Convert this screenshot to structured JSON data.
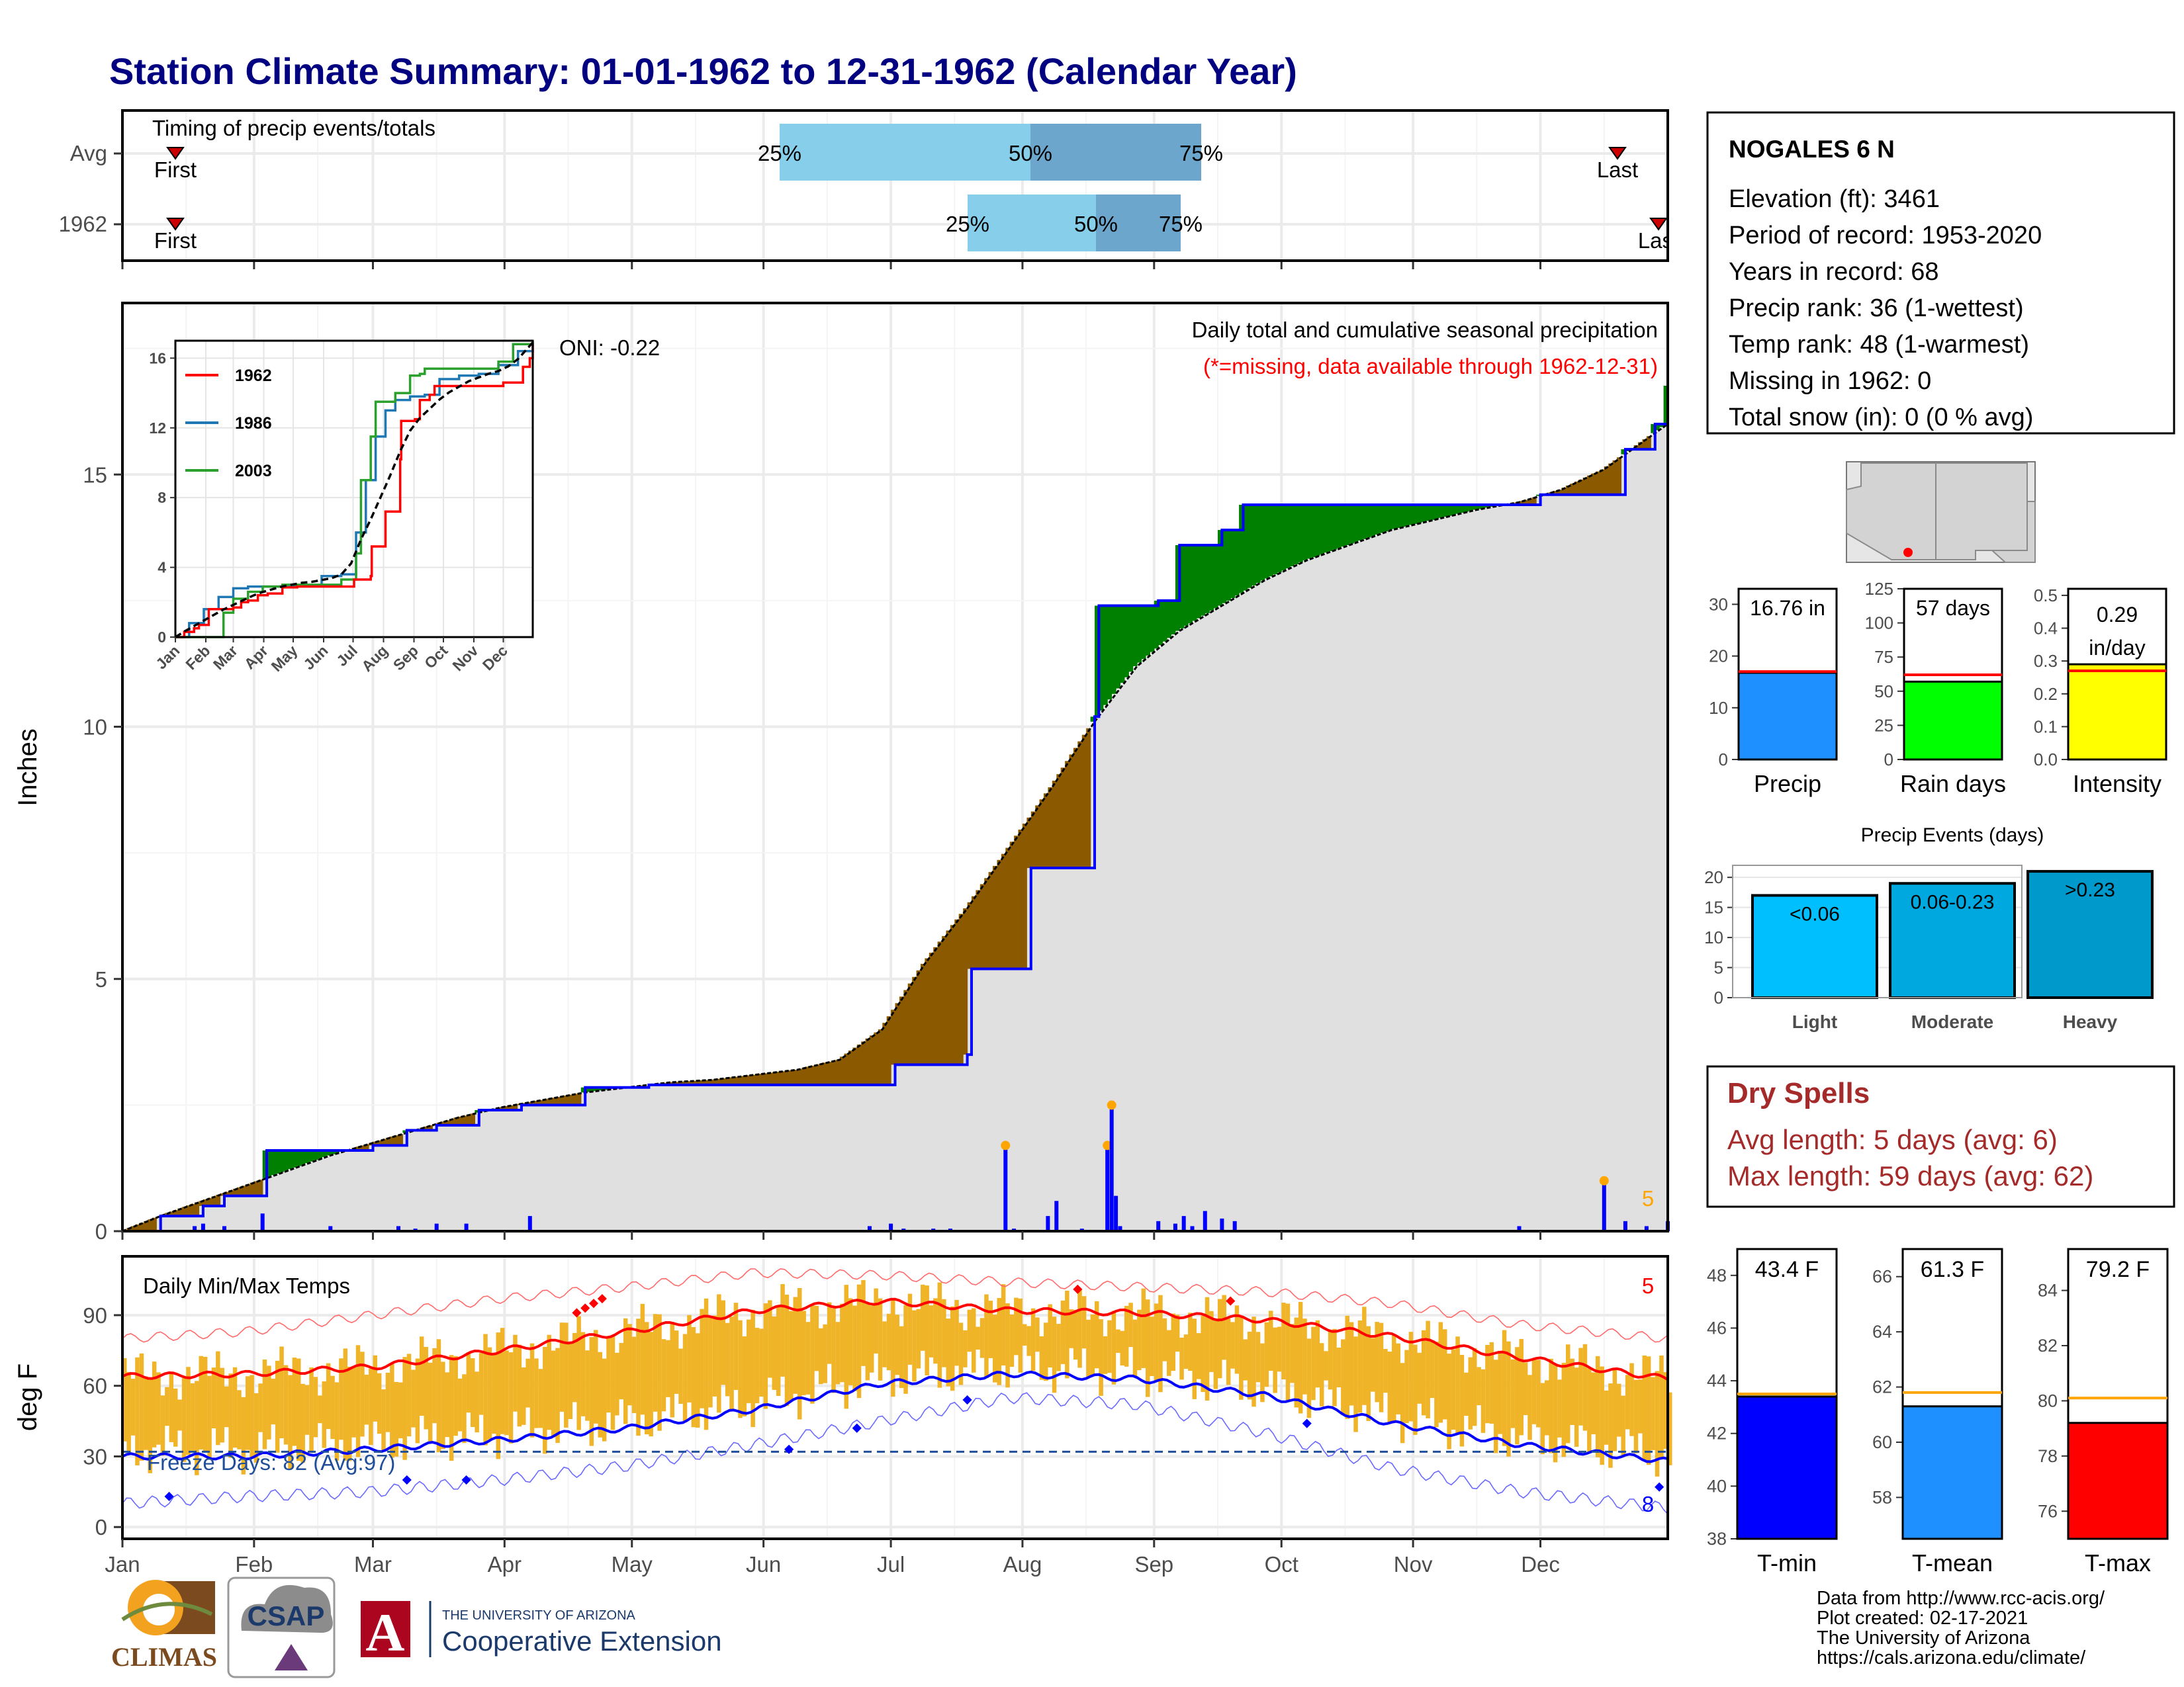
{
  "title": "Station Climate Summary: 01-01-1962 to 12-31-1962 (Calendar Year)",
  "colors": {
    "title": "#000080",
    "green": "#008000",
    "brown": "#8B5A00",
    "blue": "#0000FF",
    "grey_fill": "#E0E0E0",
    "light_blue": "#87CEEB",
    "mid_blue": "#6CA6CD",
    "orange": "#FFA500",
    "gold": "#F0B429",
    "red": "#FF0000",
    "dry_spell": "#A52A2A"
  },
  "timing_panel": {
    "title": "Timing of precip events/totals",
    "rows": [
      {
        "label": "Avg",
        "first_label": "First",
        "last_label": "Last",
        "p25_label": "25%",
        "p50_label": "50%",
        "p75_label": "75%"
      },
      {
        "label": "1962",
        "first_label": "First",
        "last_label": "Last",
        "p25_label": "25%",
        "p50_label": "50%",
        "p75_label": "75%"
      }
    ]
  },
  "precip_panel": {
    "ylabel": "Inches",
    "oni": "ONI: -0.22",
    "legend_title": "Daily total and cumulative seasonal precipitation",
    "missing_note": "(*=missing, data available through 1962-12-31)",
    "extreme_count": "5",
    "yticks": [
      "0",
      "5",
      "10",
      "15"
    ]
  },
  "inset": {
    "yticks": [
      "0",
      "4",
      "8",
      "12",
      "16"
    ],
    "months": [
      "Jan",
      "Feb",
      "Mar",
      "Apr",
      "May",
      "Jun",
      "Jul",
      "Aug",
      "Sep",
      "Oct",
      "Nov",
      "Dec"
    ],
    "legend": [
      {
        "name": "1962",
        "color": "#FF0000"
      },
      {
        "name": "1986",
        "color": "#1F77B4"
      },
      {
        "name": "2003",
        "color": "#2CA02C"
      }
    ]
  },
  "temp_panel": {
    "ylabel": "deg F",
    "title": "Daily Min/Max Temps",
    "freeze": "Freeze Days: 82 (Avg:97)",
    "max_extreme_count": "5",
    "min_extreme_count": "8",
    "yticks": [
      "0",
      "30",
      "60",
      "90"
    ],
    "months": [
      "Jan",
      "Feb",
      "Mar",
      "Apr",
      "May",
      "Jun",
      "Jul",
      "Aug",
      "Sep",
      "Oct",
      "Nov",
      "Dec"
    ]
  },
  "station_info": {
    "name": "NOGALES 6 N",
    "lines": [
      "Elevation (ft): 3461",
      "Period of record: 1953-2020",
      "Years in record: 68",
      "Precip rank: 36 (1-wettest)",
      "Temp rank: 48 (1-warmest)",
      "Missing in 1962: 0",
      "Total snow (in): 0 (0 % avg)"
    ]
  },
  "summary_bars": [
    {
      "name": "Precip",
      "value_label": "16.76 in",
      "value": 16.76,
      "avg": 17.0,
      "ymax": 33,
      "yticks": [
        "0",
        "10",
        "20",
        "30"
      ],
      "color": "#1E90FF"
    },
    {
      "name": "Rain days",
      "value_label": "57 days",
      "value": 57,
      "avg": 62,
      "ymax": 125,
      "yticks": [
        "0",
        "25",
        "50",
        "75",
        "100",
        "125"
      ],
      "color": "#00FF00"
    },
    {
      "name": "Intensity",
      "value_label": "0.29\nin/day",
      "value_line1": "0.29",
      "value_line2": "in/day",
      "value": 0.29,
      "avg": 0.27,
      "ymax": 0.52,
      "yticks": [
        "0.0",
        "0.1",
        "0.2",
        "0.3",
        "0.4",
        "0.5"
      ],
      "color": "#FFFF00"
    }
  ],
  "events_chart": {
    "title": "Precip Events (days)",
    "yticks": [
      "0",
      "5",
      "10",
      "15",
      "20"
    ],
    "bars": [
      {
        "category": "Light",
        "label": "<0.06",
        "value": 17,
        "color": "#00BFFF"
      },
      {
        "category": "Moderate",
        "label": "0.06-0.23",
        "value": 19,
        "color": "#00A8E0"
      },
      {
        "category": "Heavy",
        "label": ">0.23",
        "value": 21,
        "color": "#0099CC"
      }
    ]
  },
  "dry_spells": {
    "title": "Dry Spells",
    "avg": "Avg length: 5 days (avg: 6)",
    "max": "Max length: 59 days (avg: 62)"
  },
  "temp_bars": [
    {
      "name": "T-min",
      "value_label": "43.4 F",
      "value": 43.4,
      "avg": 43.5,
      "ymin": 38,
      "ymax": 49,
      "yticks": [
        "38",
        "40",
        "42",
        "44",
        "46",
        "48"
      ],
      "color": "#0000FF"
    },
    {
      "name": "T-mean",
      "value_label": "61.3 F",
      "value": 61.3,
      "avg": 61.8,
      "ymin": 56.5,
      "ymax": 67,
      "yticks": [
        "58",
        "60",
        "62",
        "64",
        "66"
      ],
      "color": "#1E90FF"
    },
    {
      "name": "T-max",
      "value_label": "79.2 F",
      "value": 79.2,
      "avg": 80.1,
      "ymin": 75,
      "ymax": 85.5,
      "yticks": [
        "76",
        "78",
        "80",
        "82",
        "84"
      ],
      "color": "#FF0000"
    }
  ],
  "footer": {
    "lines": [
      "Data from http://www.rcc-acis.org/",
      "Plot created: 02-17-2021",
      "The University of Arizona",
      "https://cals.arizona.edu/climate/"
    ],
    "climas": "CLIMAS",
    "csap": "CSAP",
    "ua_line1": "THE UNIVERSITY OF ARIZONA",
    "ua_line2": "Cooperative Extension"
  },
  "chart_data": [
    {
      "type": "area",
      "title": "Daily total and cumulative seasonal precipitation",
      "ylabel": "Inches",
      "ylim": [
        0,
        18.4
      ],
      "x_unit": "day of year 1962",
      "series": [
        {
          "name": "1962",
          "x": [
            1,
            10,
            20,
            25,
            35,
            50,
            60,
            68,
            75,
            85,
            95,
            110,
            125,
            140,
            160,
            170,
            178,
            183,
            190,
            200,
            201,
            215,
            215,
            228,
            230,
            231,
            245,
            250,
            260,
            265,
            270,
            290,
            330,
            335,
            350,
            355,
            362,
            365
          ],
          "values": [
            0,
            0.3,
            0.5,
            0.7,
            1.6,
            1.6,
            1.7,
            2.0,
            2.1,
            2.4,
            2.5,
            2.85,
            2.9,
            2.9,
            2.9,
            2.9,
            2.9,
            3.3,
            3.3,
            3.5,
            5.2,
            5.3,
            7.2,
            7.2,
            10.2,
            12.4,
            12.5,
            13.6,
            13.9,
            14.4,
            14.4,
            14.4,
            14.4,
            14.6,
            14.6,
            15.5,
            16.0,
            16.76
          ]
        },
        {
          "name": "Avg",
          "x": [
            1,
            10,
            20,
            30,
            40,
            50,
            60,
            70,
            80,
            90,
            100,
            110,
            120,
            130,
            140,
            150,
            160,
            170,
            180,
            190,
            200,
            210,
            220,
            230,
            240,
            250,
            260,
            270,
            280,
            290,
            300,
            310,
            320,
            330,
            340,
            350,
            365
          ],
          "values": [
            0,
            0.3,
            0.6,
            0.9,
            1.2,
            1.5,
            1.75,
            2.0,
            2.25,
            2.45,
            2.6,
            2.75,
            2.85,
            2.95,
            3.0,
            3.1,
            3.2,
            3.4,
            4.0,
            5.3,
            6.4,
            7.6,
            8.8,
            10.1,
            11.2,
            11.9,
            12.4,
            12.9,
            13.3,
            13.6,
            13.9,
            14.1,
            14.3,
            14.45,
            14.7,
            15.1,
            16.0
          ]
        }
      ],
      "daily_events": {
        "x": [
          18,
          20,
          25,
          34,
          50,
          66,
          70,
          75,
          82,
          97,
          177,
          182,
          185,
          192,
          196,
          209,
          211,
          219,
          221,
          227,
          233,
          234,
          235,
          236,
          245,
          249,
          251,
          253,
          256,
          260,
          263,
          330,
          350,
          355,
          360,
          365
        ],
        "values": [
          0.1,
          0.15,
          0.1,
          0.35,
          0.1,
          0.1,
          0.05,
          0.15,
          0.15,
          0.3,
          0.1,
          0.15,
          0.05,
          0.05,
          0.05,
          1.7,
          0.05,
          0.3,
          0.6,
          0.05,
          1.7,
          2.5,
          0.7,
          0.1,
          0.2,
          0.15,
          0.3,
          0.1,
          0.4,
          0.25,
          0.2,
          0.1,
          1.0,
          0.2,
          0.1,
          0.2
        ]
      }
    },
    {
      "type": "line",
      "title": "Daily Min/Max Temps",
      "ylabel": "deg F",
      "ylim": [
        -5,
        115
      ],
      "x_unit": "day of year 1962",
      "series": [
        {
          "name": "Avg max",
          "x": [
            1,
            30,
            60,
            90,
            120,
            150,
            180,
            210,
            240,
            270,
            300,
            330,
            365
          ],
          "values": [
            64,
            65,
            68,
            75,
            83,
            92,
            96,
            92,
            91,
            88,
            81,
            72,
            63
          ]
        },
        {
          "name": "Avg min",
          "x": [
            1,
            30,
            60,
            90,
            120,
            150,
            180,
            210,
            240,
            270,
            300,
            330,
            365
          ],
          "values": [
            30,
            30,
            33,
            37,
            42,
            50,
            61,
            65,
            63,
            56,
            44,
            35,
            28
          ]
        },
        {
          "name": "Record max",
          "x": [
            1,
            30,
            60,
            90,
            120,
            150,
            180,
            210,
            240,
            270,
            300,
            330,
            365
          ],
          "values": [
            80,
            83,
            90,
            97,
            102,
            108,
            107,
            104,
            102,
            100,
            95,
            86,
            80
          ]
        },
        {
          "name": "Record min",
          "x": [
            1,
            30,
            60,
            90,
            120,
            150,
            180,
            210,
            240,
            270,
            300,
            330,
            365
          ],
          "values": [
            10,
            13,
            15,
            20,
            26,
            35,
            45,
            55,
            52,
            40,
            25,
            15,
            8
          ]
        }
      ],
      "freeze_line": 32
    },
    {
      "type": "bar",
      "title": "Precip Events (days)",
      "categories": [
        "Light",
        "Moderate",
        "Heavy"
      ],
      "values": [
        17,
        19,
        21
      ],
      "ylim": [
        0,
        22
      ]
    }
  ]
}
